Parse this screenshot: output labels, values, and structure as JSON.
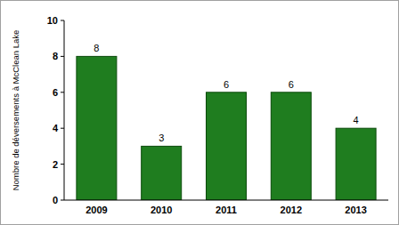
{
  "chart_data": {
    "type": "bar",
    "y_label": "Nombre de déversements à McClean Lake",
    "categories": [
      "2009",
      "2010",
      "2011",
      "2012",
      "2013"
    ],
    "values": [
      8,
      3,
      6,
      6,
      4
    ],
    "color": "#1f7d1f",
    "ylim": [
      0,
      10
    ],
    "yticks": [
      0,
      2,
      4,
      6,
      8,
      10
    ],
    "grid": false,
    "data_labels": true
  }
}
